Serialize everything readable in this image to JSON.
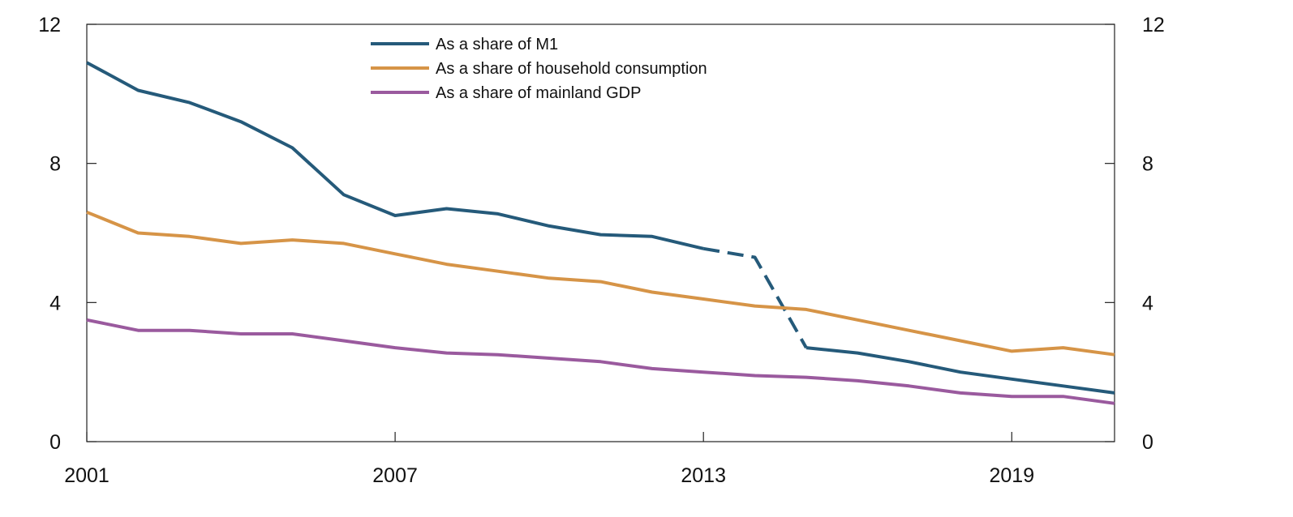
{
  "chart_data": {
    "type": "line",
    "title": "",
    "xlabel": "",
    "ylabel": "",
    "xlim": [
      2001,
      2021
    ],
    "ylim": [
      0,
      12
    ],
    "x": [
      2001,
      2002,
      2003,
      2004,
      2005,
      2006,
      2007,
      2008,
      2009,
      2010,
      2011,
      2012,
      2013,
      2014,
      2015,
      2016,
      2017,
      2018,
      2019,
      2020,
      2021
    ],
    "x_ticks": [
      "2001",
      "2007",
      "2013",
      "2019"
    ],
    "x_tick_values": [
      2001,
      2007,
      2013,
      2019
    ],
    "y_ticks_left": [
      "0",
      "4",
      "8",
      "12"
    ],
    "y_ticks_right": [
      "0",
      "4",
      "8",
      "12"
    ],
    "y_tick_values": [
      0,
      4,
      8,
      12
    ],
    "grid": false,
    "legend_position": "top-center",
    "series": [
      {
        "name": "As a share of M1",
        "color": "#255a7a",
        "values": [
          10.9,
          10.1,
          9.75,
          9.2,
          8.45,
          7.1,
          6.5,
          6.7,
          6.55,
          6.2,
          5.95,
          5.9,
          5.55,
          5.3,
          2.7,
          2.55,
          2.3,
          2.0,
          1.8,
          1.6,
          1.4
        ],
        "dashed_between": [
          [
            2013,
            2015
          ]
        ]
      },
      {
        "name": "As a share of household consumption",
        "color": "#d69447",
        "values": [
          6.6,
          6.0,
          5.9,
          5.7,
          5.8,
          5.7,
          5.4,
          5.1,
          4.9,
          4.7,
          4.6,
          4.3,
          4.1,
          3.9,
          3.8,
          3.5,
          3.2,
          2.9,
          2.6,
          2.7,
          2.5
        ]
      },
      {
        "name": "As a share of mainland GDP",
        "color": "#9a5a9e",
        "values": [
          3.5,
          3.2,
          3.2,
          3.1,
          3.1,
          2.9,
          2.7,
          2.55,
          2.5,
          2.4,
          2.3,
          2.1,
          2.0,
          1.9,
          1.85,
          1.75,
          1.6,
          1.4,
          1.3,
          1.3,
          1.1
        ]
      }
    ]
  }
}
